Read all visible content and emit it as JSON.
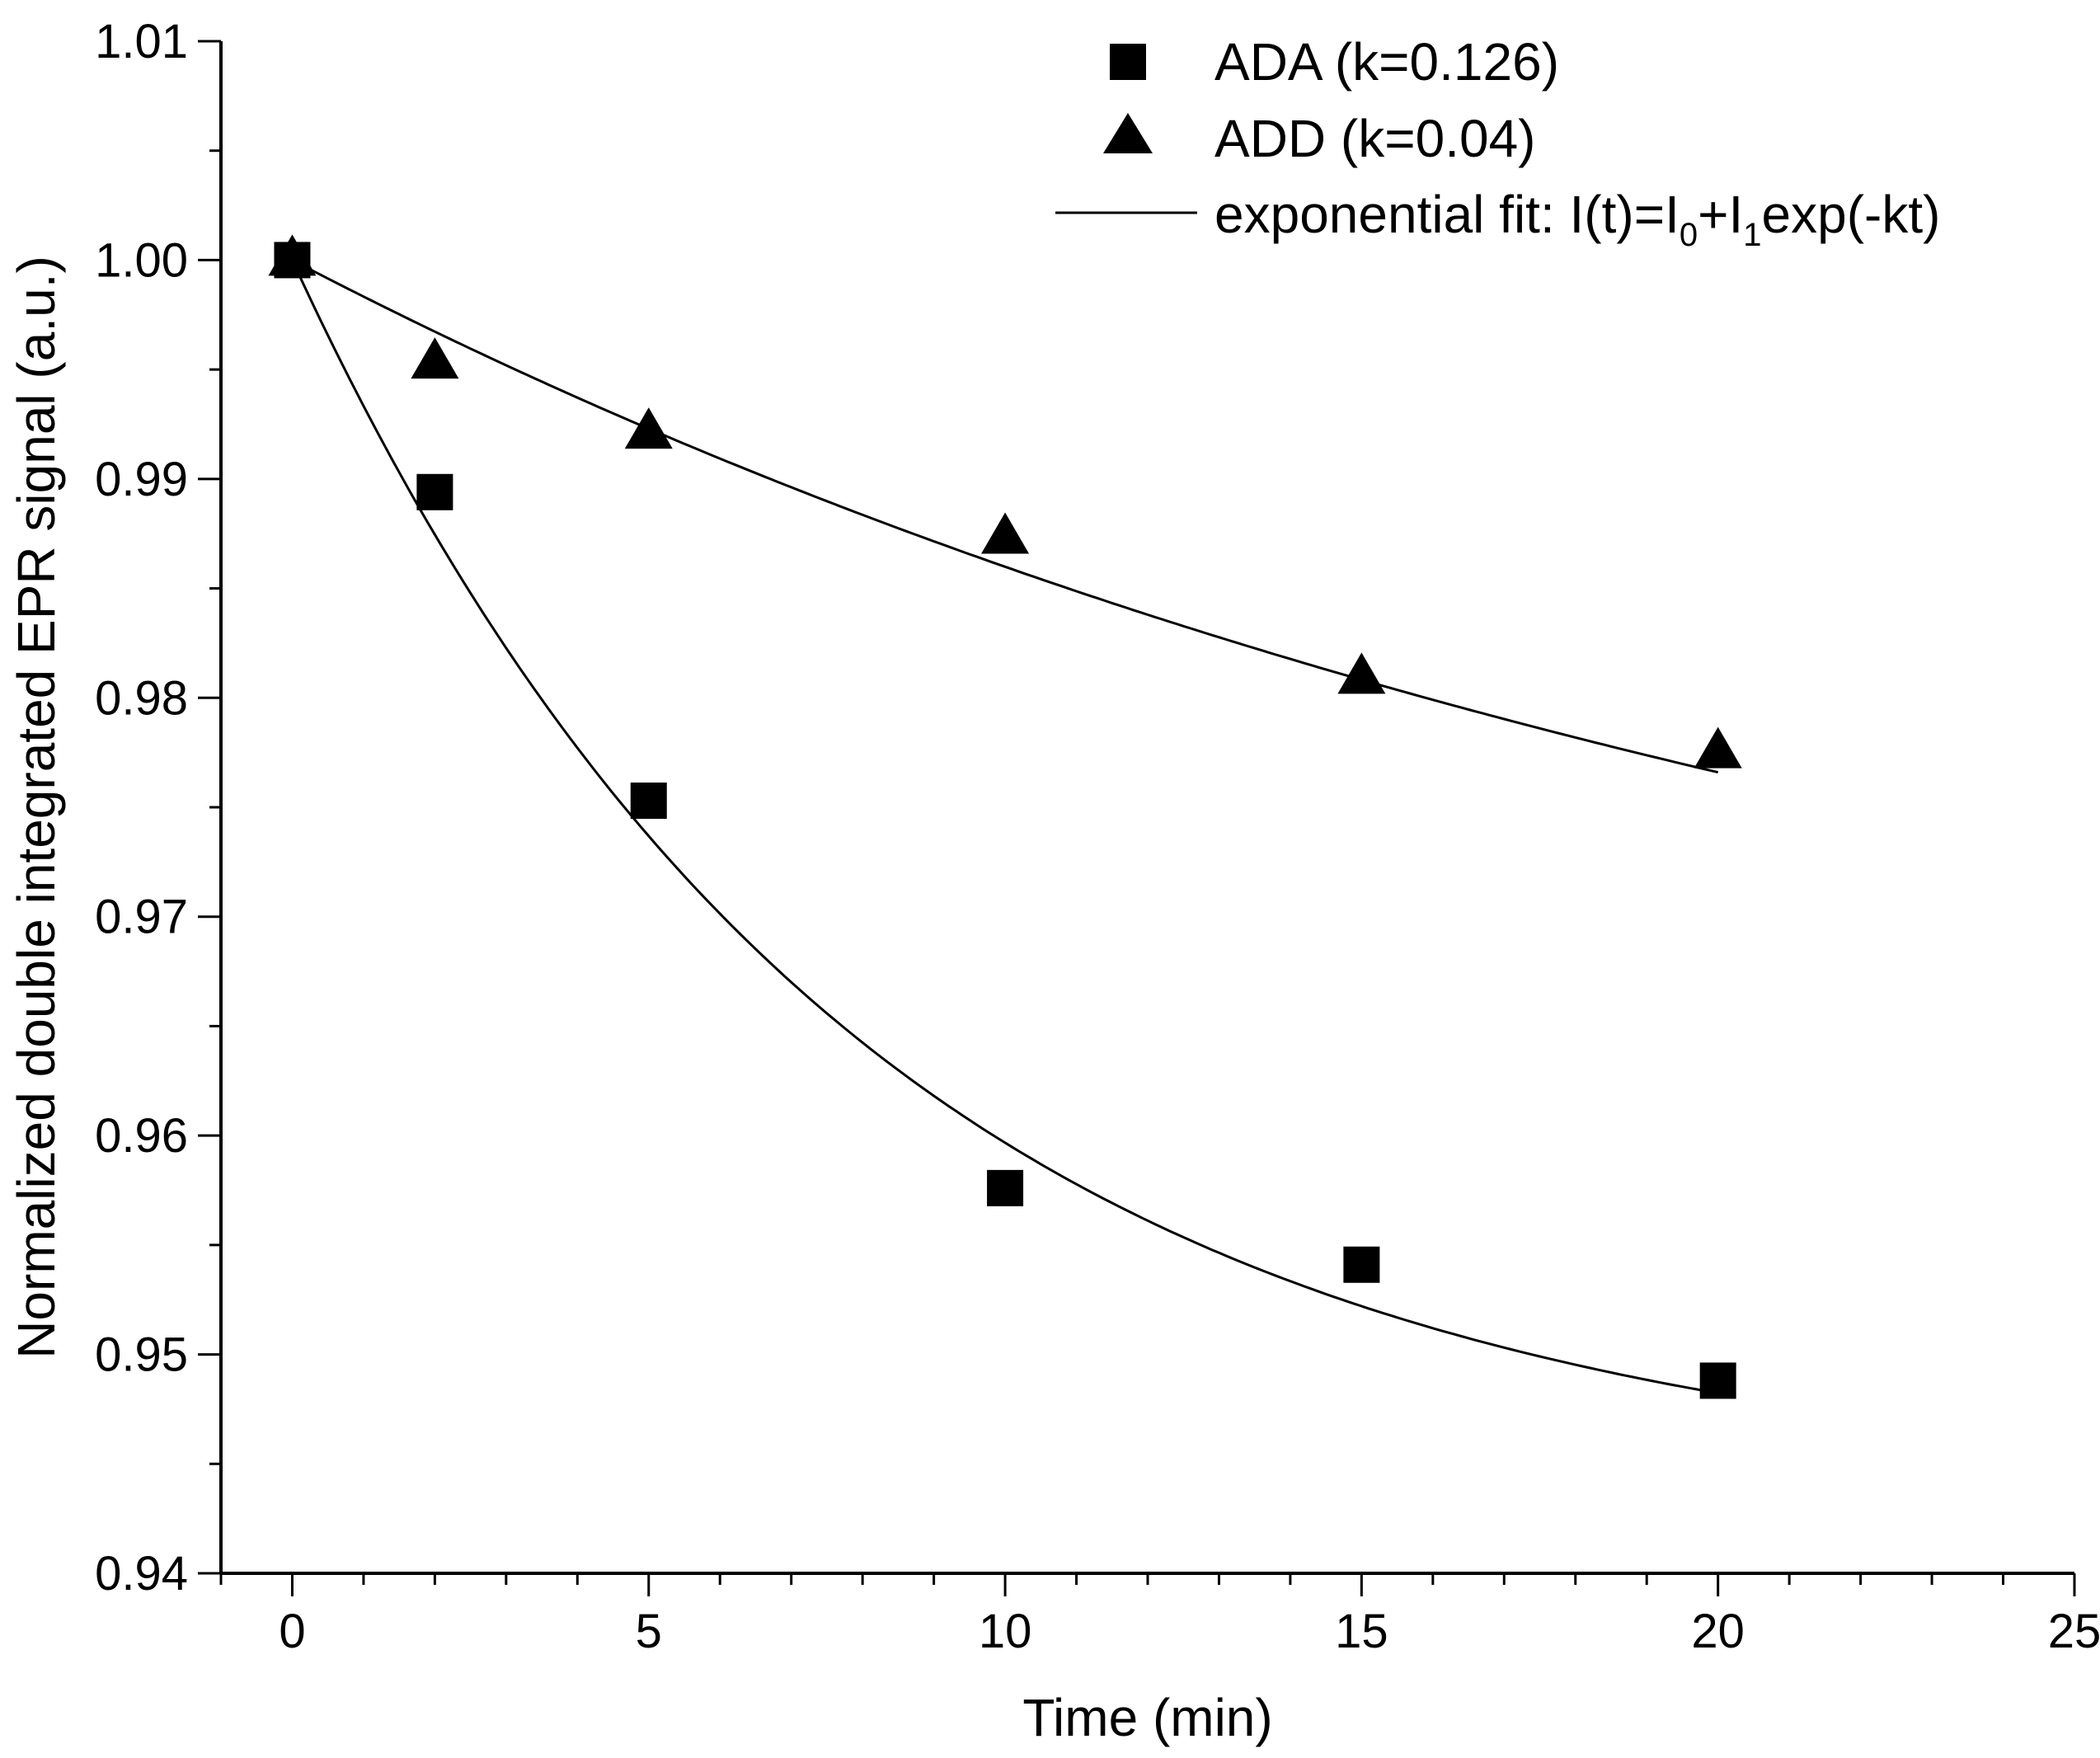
{
  "chart_data": {
    "type": "scatter",
    "title": "",
    "xlabel": "Time (min)",
    "ylabel": "Normalized double integrated EPR signal (a.u.)",
    "xlim": [
      -1,
      25
    ],
    "ylim": [
      0.94,
      1.01
    ],
    "xticks": [
      0,
      5,
      10,
      15,
      20,
      25
    ],
    "xtick_labels": [
      "0",
      "5",
      "10",
      "15",
      "20",
      "25"
    ],
    "yticks": [
      0.94,
      0.95,
      0.96,
      0.97,
      0.98,
      0.99,
      1.0,
      1.01
    ],
    "ytick_labels": [
      "0.94",
      "0.95",
      "0.96",
      "0.97",
      "0.98",
      "0.99",
      "1.00",
      "1.01"
    ],
    "x_minor_step": 1,
    "y_minor_step": 0.005,
    "grid": false,
    "legend_position": "top-right",
    "series": [
      {
        "name": "ADA (k=0.126)",
        "marker": "square",
        "x": [
          0,
          2,
          5,
          10,
          15,
          20
        ],
        "y": [
          1.0,
          0.9894,
          0.9753,
          0.9576,
          0.9541,
          0.9488
        ],
        "fit": {
          "I0": 0.9437,
          "I1": 0.0563,
          "k": 0.126
        }
      },
      {
        "name": "ADD (k=0.04)",
        "marker": "triangle",
        "x": [
          0,
          2,
          5,
          10,
          15,
          20
        ],
        "y": [
          1.0,
          0.9953,
          0.9921,
          0.9873,
          0.9809,
          0.9775
        ],
        "fit": {
          "I0": 0.9575,
          "I1": 0.0425,
          "k": 0.04
        }
      }
    ],
    "fit_legend": {
      "prefix": "exponential fit: I(t)=I",
      "sub0": "0",
      "mid": "+I",
      "sub1": "1",
      "suffix": "exp(-kt)"
    }
  }
}
